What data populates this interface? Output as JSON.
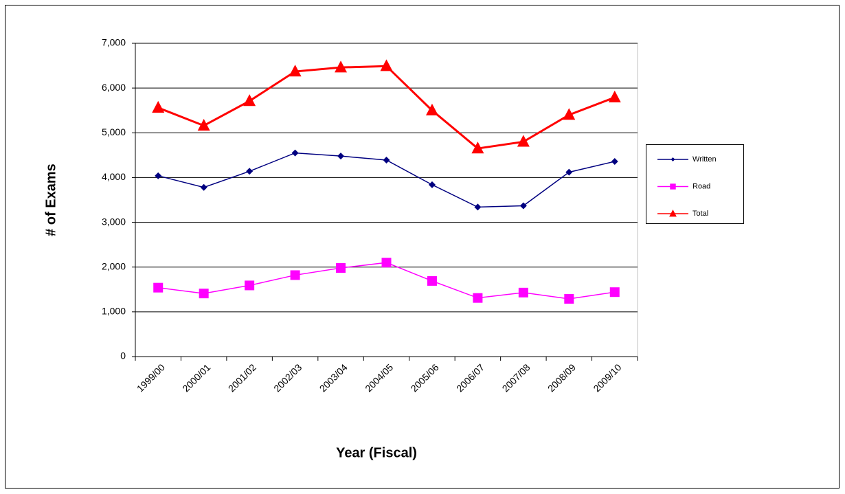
{
  "chart_data": {
    "type": "line",
    "categories": [
      "1999/00",
      "2000/01",
      "2001/02",
      "2002/03",
      "2003/04",
      "2004/05",
      "2005/06",
      "2006/07",
      "2007/08",
      "2008/09",
      "2009/10"
    ],
    "series": [
      {
        "name": "Written",
        "color": "#000080",
        "marker": "diamond",
        "values": [
          4040,
          3780,
          4140,
          4550,
          4480,
          4390,
          3840,
          3340,
          3370,
          4120,
          4360
        ]
      },
      {
        "name": "Road",
        "color": "#ff00ff",
        "marker": "square",
        "values": [
          1540,
          1410,
          1590,
          1820,
          1980,
          2100,
          1690,
          1310,
          1430,
          1290,
          1440
        ]
      },
      {
        "name": "Total",
        "color": "#ff0000",
        "marker": "triangle",
        "values": [
          5560,
          5160,
          5710,
          6370,
          6460,
          6490,
          5500,
          4650,
          4800,
          5400,
          5790
        ]
      }
    ],
    "x_label": "Year (Fiscal)",
    "y_label": "# of Exams",
    "ylim": [
      0,
      7000
    ],
    "yticks": [
      0,
      {
        "value": 1000,
        "label": "1,000"
      },
      {
        "value": 2000,
        "label": "2,000"
      },
      {
        "value": 3000,
        "label": "3,000"
      },
      {
        "value": 4000,
        "label": "4,000"
      },
      {
        "value": 5000,
        "label": "5,000"
      },
      {
        "value": 6000,
        "label": "6,000"
      },
      {
        "value": 7000,
        "label": "7,000"
      }
    ],
    "grid": true,
    "legend": "right"
  }
}
